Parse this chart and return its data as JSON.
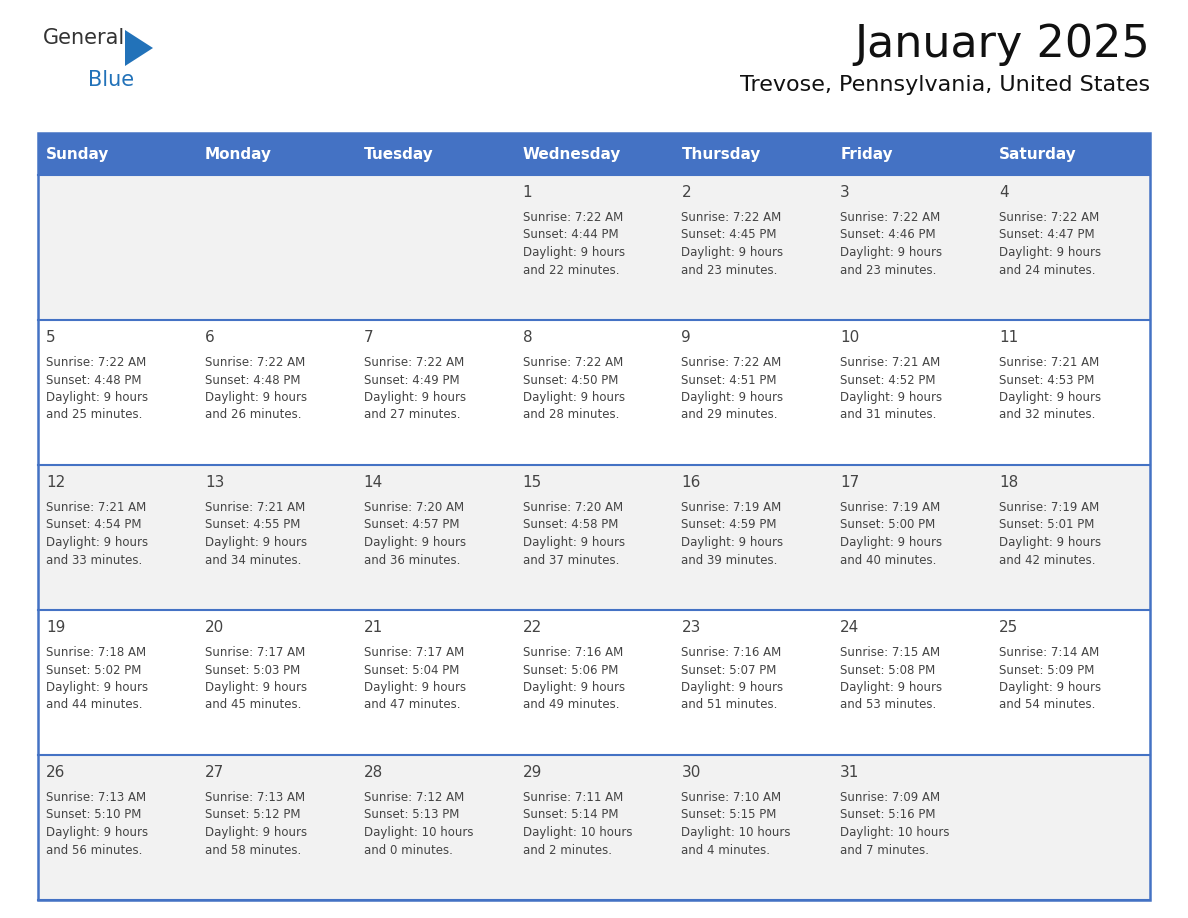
{
  "title": "January 2025",
  "subtitle": "Trevose, Pennsylvania, United States",
  "days_of_week": [
    "Sunday",
    "Monday",
    "Tuesday",
    "Wednesday",
    "Thursday",
    "Friday",
    "Saturday"
  ],
  "header_bg": "#4472C4",
  "header_text_color": "#FFFFFF",
  "row_bg_even": "#F2F2F2",
  "row_bg_odd": "#FFFFFF",
  "cell_text_color": "#444444",
  "grid_color": "#4472C4",
  "calendar": [
    [
      {
        "day": "",
        "sunrise": "",
        "sunset": "",
        "daylight": ""
      },
      {
        "day": "",
        "sunrise": "",
        "sunset": "",
        "daylight": ""
      },
      {
        "day": "",
        "sunrise": "",
        "sunset": "",
        "daylight": ""
      },
      {
        "day": "1",
        "sunrise": "7:22 AM",
        "sunset": "4:44 PM",
        "daylight": "9 hours\nand 22 minutes."
      },
      {
        "day": "2",
        "sunrise": "7:22 AM",
        "sunset": "4:45 PM",
        "daylight": "9 hours\nand 23 minutes."
      },
      {
        "day": "3",
        "sunrise": "7:22 AM",
        "sunset": "4:46 PM",
        "daylight": "9 hours\nand 23 minutes."
      },
      {
        "day": "4",
        "sunrise": "7:22 AM",
        "sunset": "4:47 PM",
        "daylight": "9 hours\nand 24 minutes."
      }
    ],
    [
      {
        "day": "5",
        "sunrise": "7:22 AM",
        "sunset": "4:48 PM",
        "daylight": "9 hours\nand 25 minutes."
      },
      {
        "day": "6",
        "sunrise": "7:22 AM",
        "sunset": "4:48 PM",
        "daylight": "9 hours\nand 26 minutes."
      },
      {
        "day": "7",
        "sunrise": "7:22 AM",
        "sunset": "4:49 PM",
        "daylight": "9 hours\nand 27 minutes."
      },
      {
        "day": "8",
        "sunrise": "7:22 AM",
        "sunset": "4:50 PM",
        "daylight": "9 hours\nand 28 minutes."
      },
      {
        "day": "9",
        "sunrise": "7:22 AM",
        "sunset": "4:51 PM",
        "daylight": "9 hours\nand 29 minutes."
      },
      {
        "day": "10",
        "sunrise": "7:21 AM",
        "sunset": "4:52 PM",
        "daylight": "9 hours\nand 31 minutes."
      },
      {
        "day": "11",
        "sunrise": "7:21 AM",
        "sunset": "4:53 PM",
        "daylight": "9 hours\nand 32 minutes."
      }
    ],
    [
      {
        "day": "12",
        "sunrise": "7:21 AM",
        "sunset": "4:54 PM",
        "daylight": "9 hours\nand 33 minutes."
      },
      {
        "day": "13",
        "sunrise": "7:21 AM",
        "sunset": "4:55 PM",
        "daylight": "9 hours\nand 34 minutes."
      },
      {
        "day": "14",
        "sunrise": "7:20 AM",
        "sunset": "4:57 PM",
        "daylight": "9 hours\nand 36 minutes."
      },
      {
        "day": "15",
        "sunrise": "7:20 AM",
        "sunset": "4:58 PM",
        "daylight": "9 hours\nand 37 minutes."
      },
      {
        "day": "16",
        "sunrise": "7:19 AM",
        "sunset": "4:59 PM",
        "daylight": "9 hours\nand 39 minutes."
      },
      {
        "day": "17",
        "sunrise": "7:19 AM",
        "sunset": "5:00 PM",
        "daylight": "9 hours\nand 40 minutes."
      },
      {
        "day": "18",
        "sunrise": "7:19 AM",
        "sunset": "5:01 PM",
        "daylight": "9 hours\nand 42 minutes."
      }
    ],
    [
      {
        "day": "19",
        "sunrise": "7:18 AM",
        "sunset": "5:02 PM",
        "daylight": "9 hours\nand 44 minutes."
      },
      {
        "day": "20",
        "sunrise": "7:17 AM",
        "sunset": "5:03 PM",
        "daylight": "9 hours\nand 45 minutes."
      },
      {
        "day": "21",
        "sunrise": "7:17 AM",
        "sunset": "5:04 PM",
        "daylight": "9 hours\nand 47 minutes."
      },
      {
        "day": "22",
        "sunrise": "7:16 AM",
        "sunset": "5:06 PM",
        "daylight": "9 hours\nand 49 minutes."
      },
      {
        "day": "23",
        "sunrise": "7:16 AM",
        "sunset": "5:07 PM",
        "daylight": "9 hours\nand 51 minutes."
      },
      {
        "day": "24",
        "sunrise": "7:15 AM",
        "sunset": "5:08 PM",
        "daylight": "9 hours\nand 53 minutes."
      },
      {
        "day": "25",
        "sunrise": "7:14 AM",
        "sunset": "5:09 PM",
        "daylight": "9 hours\nand 54 minutes."
      }
    ],
    [
      {
        "day": "26",
        "sunrise": "7:13 AM",
        "sunset": "5:10 PM",
        "daylight": "9 hours\nand 56 minutes."
      },
      {
        "day": "27",
        "sunrise": "7:13 AM",
        "sunset": "5:12 PM",
        "daylight": "9 hours\nand 58 minutes."
      },
      {
        "day": "28",
        "sunrise": "7:12 AM",
        "sunset": "5:13 PM",
        "daylight": "10 hours\nand 0 minutes."
      },
      {
        "day": "29",
        "sunrise": "7:11 AM",
        "sunset": "5:14 PM",
        "daylight": "10 hours\nand 2 minutes."
      },
      {
        "day": "30",
        "sunrise": "7:10 AM",
        "sunset": "5:15 PM",
        "daylight": "10 hours\nand 4 minutes."
      },
      {
        "day": "31",
        "sunrise": "7:09 AM",
        "sunset": "5:16 PM",
        "daylight": "10 hours\nand 7 minutes."
      },
      {
        "day": "",
        "sunrise": "",
        "sunset": "",
        "daylight": ""
      }
    ]
  ],
  "logo_general_color": "#333333",
  "logo_blue_color": "#2272B9",
  "logo_triangle_color": "#2272B9",
  "title_fontsize": 32,
  "subtitle_fontsize": 16,
  "header_fontsize": 11,
  "day_num_fontsize": 11,
  "cell_text_fontsize": 8.5
}
